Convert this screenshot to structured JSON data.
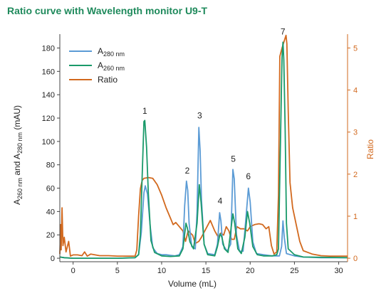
{
  "chart_data": {
    "type": "line",
    "title": "Ratio curve with Wavelength monitor U9-T",
    "xlabel": "Volume (mL)",
    "ylabel_left": {
      "base": "A",
      "sub1": "260 nm",
      "mid": " and A",
      "sub2": "280 nm",
      "end": " (mAU)"
    },
    "ylabel_right": "Ratio",
    "xlim": [
      -1.5,
      31
    ],
    "ylim_left": [
      -3,
      187
    ],
    "ylim_right": [
      -0.083,
      5.194
    ],
    "x_ticks": [
      0,
      5,
      10,
      15,
      20,
      25,
      30
    ],
    "y_left_ticks": [
      0,
      20,
      40,
      60,
      80,
      100,
      120,
      140,
      160,
      180
    ],
    "y_right_ticks": [
      0,
      1,
      2,
      3,
      4,
      5
    ],
    "grid": false,
    "legend": [
      {
        "base": "A",
        "sub": "280 nm",
        "color": "#5b9bd5"
      },
      {
        "base": "A",
        "sub": "260 nm",
        "color": "#1a9a6a"
      },
      {
        "base": "Ratio",
        "sub": "",
        "color": "#d2691e"
      }
    ],
    "peak_labels": [
      {
        "text": "1",
        "x": 8.1,
        "y": 120
      },
      {
        "text": "2",
        "x": 12.9,
        "y": 69
      },
      {
        "text": "3",
        "x": 14.3,
        "y": 116
      },
      {
        "text": "4",
        "x": 16.6,
        "y": 43
      },
      {
        "text": "5",
        "x": 18.1,
        "y": 79
      },
      {
        "text": "6",
        "x": 19.8,
        "y": 64
      },
      {
        "text": "7",
        "x": 23.7,
        "y": 188
      }
    ],
    "series": [
      {
        "name": "A280 nm",
        "axis": "left",
        "color": "#5b9bd5",
        "points": [
          [
            -1.5,
            1
          ],
          [
            -1,
            0.5
          ],
          [
            0,
            0
          ],
          [
            5,
            0
          ],
          [
            7,
            0.5
          ],
          [
            7.4,
            3
          ],
          [
            7.7,
            22
          ],
          [
            8,
            56
          ],
          [
            8.15,
            62
          ],
          [
            8.4,
            55
          ],
          [
            8.7,
            28
          ],
          [
            9,
            9
          ],
          [
            9.5,
            4
          ],
          [
            10,
            3
          ],
          [
            10.5,
            3
          ],
          [
            11,
            2.5
          ],
          [
            11.5,
            2
          ],
          [
            12,
            3
          ],
          [
            12.4,
            10
          ],
          [
            12.6,
            45
          ],
          [
            12.8,
            66
          ],
          [
            12.95,
            58
          ],
          [
            13.1,
            30
          ],
          [
            13.4,
            10
          ],
          [
            13.8,
            8
          ],
          [
            14,
            40
          ],
          [
            14.2,
            112
          ],
          [
            14.35,
            92
          ],
          [
            14.5,
            50
          ],
          [
            14.8,
            12
          ],
          [
            15.2,
            4
          ],
          [
            16,
            3
          ],
          [
            16.3,
            12
          ],
          [
            16.55,
            39
          ],
          [
            16.7,
            32
          ],
          [
            16.9,
            12
          ],
          [
            17.4,
            6
          ],
          [
            17.8,
            12
          ],
          [
            18.05,
            76
          ],
          [
            18.2,
            68
          ],
          [
            18.45,
            20
          ],
          [
            18.8,
            6
          ],
          [
            19.2,
            6
          ],
          [
            19.5,
            32
          ],
          [
            19.8,
            60
          ],
          [
            20,
            48
          ],
          [
            20.3,
            14
          ],
          [
            20.7,
            4
          ],
          [
            21.5,
            3
          ],
          [
            22.5,
            2
          ],
          [
            23,
            2
          ],
          [
            23.3,
            2
          ],
          [
            23.55,
            10
          ],
          [
            23.7,
            32
          ],
          [
            23.85,
            18
          ],
          [
            24.1,
            4
          ],
          [
            25,
            2
          ],
          [
            26,
            1
          ],
          [
            28,
            0.5
          ],
          [
            31,
            0.5
          ]
        ]
      },
      {
        "name": "A260 nm",
        "axis": "left",
        "color": "#1a9a6a",
        "points": [
          [
            -1.5,
            1
          ],
          [
            -1,
            0.5
          ],
          [
            0,
            0
          ],
          [
            5,
            0
          ],
          [
            7,
            0.5
          ],
          [
            7.4,
            3
          ],
          [
            7.6,
            20
          ],
          [
            7.8,
            70
          ],
          [
            8,
            117
          ],
          [
            8.1,
            118
          ],
          [
            8.3,
            95
          ],
          [
            8.5,
            55
          ],
          [
            8.8,
            15
          ],
          [
            9.2,
            5
          ],
          [
            10,
            2
          ],
          [
            11,
            1.5
          ],
          [
            12,
            2
          ],
          [
            12.4,
            8
          ],
          [
            12.75,
            30
          ],
          [
            12.9,
            26
          ],
          [
            13.2,
            14
          ],
          [
            13.6,
            8
          ],
          [
            14,
            30
          ],
          [
            14.25,
            63
          ],
          [
            14.45,
            48
          ],
          [
            14.8,
            12
          ],
          [
            15.2,
            3
          ],
          [
            16,
            2
          ],
          [
            16.3,
            10
          ],
          [
            16.6,
            21
          ],
          [
            16.8,
            18
          ],
          [
            17.1,
            8
          ],
          [
            17.5,
            5
          ],
          [
            17.85,
            26
          ],
          [
            18.05,
            38
          ],
          [
            18.25,
            30
          ],
          [
            18.6,
            8
          ],
          [
            19,
            4
          ],
          [
            19.4,
            18
          ],
          [
            19.7,
            40
          ],
          [
            19.95,
            30
          ],
          [
            20.3,
            10
          ],
          [
            20.8,
            3
          ],
          [
            21.5,
            2
          ],
          [
            22.5,
            2
          ],
          [
            23,
            3
          ],
          [
            23.2,
            8
          ],
          [
            23.4,
            90
          ],
          [
            23.6,
            172
          ],
          [
            23.7,
            185
          ],
          [
            23.8,
            170
          ],
          [
            23.95,
            110
          ],
          [
            24.1,
            30
          ],
          [
            24.3,
            8
          ],
          [
            25,
            3
          ],
          [
            26,
            1
          ],
          [
            31,
            0.5
          ]
        ]
      },
      {
        "name": "Ratio",
        "axis": "right",
        "color": "#d2691e",
        "points": [
          [
            -1.5,
            0.1
          ],
          [
            -1.4,
            0.8
          ],
          [
            -1.35,
            0.2
          ],
          [
            -1.25,
            1.2
          ],
          [
            -1.15,
            0.3
          ],
          [
            -1,
            0.5
          ],
          [
            -0.8,
            0.15
          ],
          [
            -0.5,
            0.4
          ],
          [
            -0.3,
            0.05
          ],
          [
            0,
            0.08
          ],
          [
            0.5,
            0.08
          ],
          [
            1,
            0.06
          ],
          [
            1.3,
            0.15
          ],
          [
            1.6,
            0.05
          ],
          [
            2,
            0.1
          ],
          [
            3,
            0.06
          ],
          [
            4,
            0.06
          ],
          [
            5,
            0.05
          ],
          [
            6,
            0.05
          ],
          [
            7,
            0.05
          ],
          [
            7.2,
            0.2
          ],
          [
            7.4,
            1
          ],
          [
            7.6,
            1.65
          ],
          [
            7.8,
            1.85
          ],
          [
            8,
            1.9
          ],
          [
            8.5,
            1.92
          ],
          [
            9,
            1.9
          ],
          [
            9.5,
            1.75
          ],
          [
            10,
            1.5
          ],
          [
            10.5,
            1.2
          ],
          [
            11,
            0.95
          ],
          [
            11.3,
            0.8
          ],
          [
            11.6,
            0.85
          ],
          [
            12,
            0.75
          ],
          [
            12.4,
            0.65
          ],
          [
            12.7,
            0.4
          ],
          [
            13,
            0.65
          ],
          [
            13.5,
            0.55
          ],
          [
            13.8,
            0.35
          ],
          [
            14.2,
            0.4
          ],
          [
            14.5,
            0.5
          ],
          [
            15,
            0.7
          ],
          [
            15.5,
            0.9
          ],
          [
            16,
            0.65
          ],
          [
            16.4,
            0.5
          ],
          [
            16.7,
            0.6
          ],
          [
            17,
            0.55
          ],
          [
            17.3,
            0.75
          ],
          [
            17.6,
            0.65
          ],
          [
            17.9,
            0.45
          ],
          [
            18.2,
            0.45
          ],
          [
            18.5,
            0.75
          ],
          [
            18.9,
            0.7
          ],
          [
            19.3,
            0.7
          ],
          [
            19.7,
            0.65
          ],
          [
            20,
            0.75
          ],
          [
            20.5,
            0.8
          ],
          [
            21,
            0.82
          ],
          [
            21.4,
            0.8
          ],
          [
            21.8,
            0.7
          ],
          [
            22.1,
            0.75
          ],
          [
            22.4,
            0.3
          ],
          [
            22.7,
            0.1
          ],
          [
            23,
            0.15
          ],
          [
            23.2,
            1.5
          ],
          [
            23.35,
            4.8
          ],
          [
            23.6,
            5.0
          ],
          [
            23.9,
            5.2
          ],
          [
            24.05,
            5.3
          ],
          [
            24.15,
            5.1
          ],
          [
            24.3,
            3.5
          ],
          [
            24.5,
            1.8
          ],
          [
            24.8,
            1.2
          ],
          [
            25.2,
            0.8
          ],
          [
            25.6,
            0.4
          ],
          [
            26,
            0.18
          ],
          [
            27,
            0.1
          ],
          [
            28,
            0.06
          ],
          [
            29,
            0.05
          ],
          [
            31,
            0.05
          ]
        ]
      }
    ]
  }
}
